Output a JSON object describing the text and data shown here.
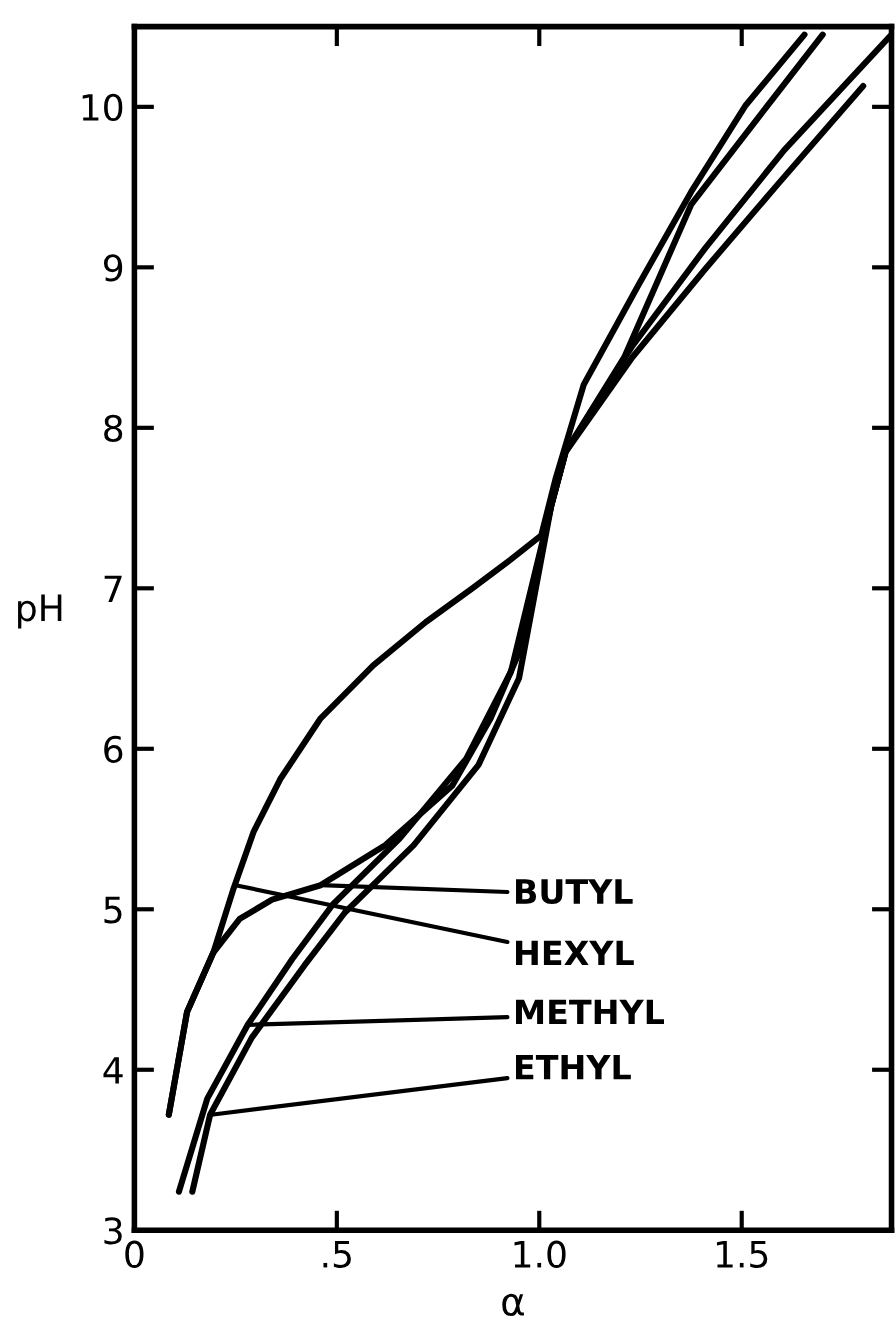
{
  "chart_data": {
    "type": "line",
    "xlabel": "α",
    "ylabel": "pH",
    "xlim": [
      0,
      1.87
    ],
    "ylim": [
      3,
      10.5
    ],
    "xticks": [
      {
        "value": 0,
        "label": "0"
      },
      {
        "value": 0.5,
        "label": ".5"
      },
      {
        "value": 1.0,
        "label": "1.0"
      },
      {
        "value": 1.5,
        "label": "1.5"
      }
    ],
    "yticks": [
      3,
      4,
      5,
      6,
      7,
      8,
      9,
      10
    ],
    "grid": false,
    "marker": "none",
    "line_style": "solid",
    "series": [
      {
        "color": "#000000",
        "x": [
          0.085,
          0.13,
          0.195,
          0.245,
          0.294,
          0.36,
          0.46,
          0.59,
          0.72,
          0.835,
          0.93,
          1.005,
          1.04,
          1.11,
          1.245,
          1.375,
          1.51,
          1.655
        ],
        "values": [
          3.72,
          4.36,
          4.73,
          5.13,
          5.48,
          5.81,
          6.19,
          6.52,
          6.79,
          7.0,
          7.18,
          7.33,
          7.68,
          8.27,
          8.89,
          9.47,
          10.01,
          10.45
        ]
      },
      {
        "color": "#000000",
        "x": [
          0.085,
          0.13,
          0.195,
          0.26,
          0.34,
          0.46,
          0.62,
          0.785,
          0.88,
          0.95,
          1.03,
          1.065,
          1.21,
          1.375,
          1.54,
          1.7
        ],
        "values": [
          3.72,
          4.36,
          4.73,
          4.94,
          5.06,
          5.15,
          5.4,
          5.77,
          6.19,
          6.6,
          7.52,
          7.85,
          8.44,
          9.39,
          9.93,
          10.45
        ]
      },
      {
        "color": "#000000",
        "x": [
          0.11,
          0.18,
          0.28,
          0.39,
          0.49,
          0.655,
          0.82,
          0.93,
          1.03,
          1.065,
          1.23,
          1.41,
          1.605,
          1.87
        ],
        "values": [
          3.24,
          3.82,
          4.28,
          4.69,
          5.03,
          5.44,
          5.94,
          6.48,
          7.52,
          7.85,
          8.51,
          9.12,
          9.73,
          10.45
        ]
      },
      {
        "color": "#000000",
        "x": [
          0.143,
          0.187,
          0.29,
          0.42,
          0.52,
          0.69,
          0.85,
          0.95,
          1.03,
          1.065,
          1.23,
          1.41,
          1.59,
          1.8
        ],
        "values": [
          3.24,
          3.72,
          4.2,
          4.65,
          4.98,
          5.4,
          5.9,
          6.44,
          7.52,
          7.85,
          8.44,
          8.99,
          9.52,
          10.13
        ]
      }
    ],
    "annotations": [
      {
        "text": "BUTYL",
        "x": 0.46,
        "y": 5.15
      },
      {
        "text": "HEXYL",
        "x": 0.25,
        "y": 5.15
      },
      {
        "text": "METHYL",
        "x": 0.28,
        "y": 4.28
      },
      {
        "text": "ETHYL",
        "x": 0.19,
        "y": 3.72
      }
    ]
  }
}
